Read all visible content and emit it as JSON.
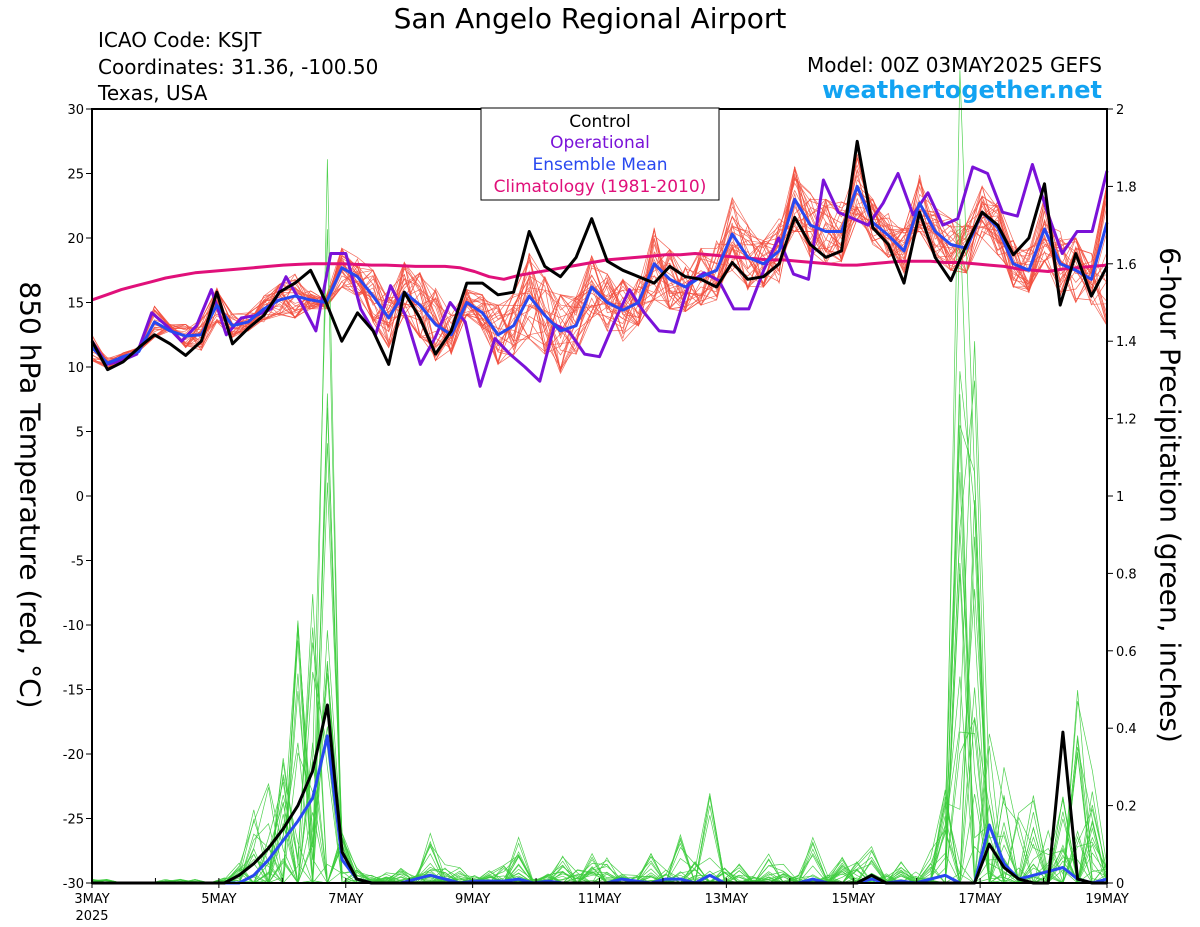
{
  "header": {
    "title": "San Angelo Regional Airport",
    "icao": "ICAO Code: KSJT",
    "coordinates": "Coordinates: 31.36, -100.50",
    "region": "Texas, USA",
    "model": "Model: 00Z 03MAY2025 GEFS",
    "site": "weathertogether.net"
  },
  "colors": {
    "control": "#000000",
    "operational": "#7a12d8",
    "ensemble_mean": "#2848f0",
    "climatology": "#e0107a",
    "members_temp": "#f25040",
    "members_precip": "#3ccc3c",
    "site_link": "#12a3f2"
  },
  "chart_data": {
    "type": "line",
    "title": "San Angelo Regional Airport",
    "ylabel": "850 hPa Temperature (red, °C)",
    "y2label": "6-hour Precipitation (green, inches)",
    "ylim": [
      -30,
      30
    ],
    "y2lim": [
      0,
      2
    ],
    "xlim": [
      "2025-05-03 00Z",
      "2025-05-19 00Z"
    ],
    "x_step": "6 hours",
    "yticks": [
      "30",
      "25",
      "20",
      "15",
      "10",
      "5",
      "0",
      "-5",
      "-10",
      "-15",
      "-20",
      "-25",
      "-30"
    ],
    "y2ticks": [
      "2",
      "1.8",
      "1.6",
      "1.4",
      "1.2",
      "1",
      "0.8",
      "0.6",
      "0.4",
      "0.2",
      "0"
    ],
    "xticks": [
      "3MAY",
      "5MAY",
      "7MAY",
      "9MAY",
      "11MAY",
      "13MAY",
      "15MAY",
      "17MAY",
      "19MAY"
    ],
    "xtick_year": "2025",
    "legend": {
      "placement": "top-center",
      "entries": [
        "Control",
        "Operational",
        "Ensemble Mean",
        "Climatology (1981-2010)"
      ]
    },
    "series": [
      {
        "name": "Control",
        "axis": "temperature",
        "values": [
          12,
          9.8,
          10.4,
          11.5,
          12.5,
          11.8,
          10.9,
          12,
          15.8,
          11.8,
          13,
          14,
          15.8,
          16.5,
          17.5,
          15,
          12,
          14.2,
          12.8,
          10.2,
          15.8,
          13.8,
          11,
          12.8,
          16.5,
          16.5,
          15.6,
          15.8,
          20.5,
          17.8,
          17,
          18.5,
          21.5,
          18.2,
          17.5,
          17,
          16.5,
          17.8,
          17,
          16.8,
          16.2,
          18.1,
          16.8,
          17,
          18,
          21.6,
          19.5,
          18.5,
          19,
          27.5,
          20.8,
          19.5,
          16.5,
          22,
          18.5,
          16.7,
          19.5,
          22,
          21,
          18.7,
          20,
          24.2,
          14.8,
          18.8,
          15.5,
          17.8
        ]
      },
      {
        "name": "Operational",
        "axis": "temperature",
        "values": [
          12,
          10.2,
          10.5,
          11,
          14.2,
          13.2,
          12,
          13.2,
          16,
          12.5,
          13.8,
          14,
          14.5,
          17,
          15,
          12.8,
          18.8,
          18.8,
          14.5,
          12.5,
          16.3,
          14,
          10.2,
          12.3,
          15,
          13.5,
          8.5,
          12.2,
          11,
          10,
          8.9,
          13.3,
          12.7,
          11,
          10.8,
          13.5,
          16,
          14.2,
          12.8,
          12.7,
          16.5,
          17.3,
          16.7,
          14.5,
          14.5,
          17.5,
          20,
          17.2,
          16.8,
          24.5,
          22,
          21.5,
          21,
          22.7,
          25,
          21.8,
          23.5,
          21,
          21.5,
          25.5,
          25,
          22,
          21.7,
          25.7,
          22,
          18.8,
          20.5,
          20.5,
          25.2
        ]
      },
      {
        "name": "Ensemble Mean",
        "axis": "temperature",
        "values": [
          11.5,
          10.3,
          10.8,
          11.2,
          13.5,
          12.8,
          12.4,
          12.5,
          14.8,
          13.2,
          13.5,
          14.5,
          15.2,
          15.5,
          15.2,
          15,
          17.7,
          17,
          15.5,
          13.8,
          15.8,
          14.8,
          13.3,
          12.5,
          15,
          14.2,
          12.5,
          13.2,
          15.5,
          14,
          12.8,
          13.2,
          16.2,
          15,
          14.4,
          15,
          18,
          16.8,
          16.2,
          17,
          17.5,
          20.3,
          18.5,
          18,
          19,
          23,
          21,
          20.5,
          20.5,
          24,
          21.2,
          20.2,
          19,
          22.7,
          20.5,
          19.5,
          19.2,
          22,
          20.8,
          18,
          17.5,
          20.7,
          18,
          17.5,
          16.8,
          21.2
        ]
      },
      {
        "name": "Climatology (1981-2010)",
        "axis": "temperature",
        "values": [
          15.2,
          15.6,
          16,
          16.3,
          16.6,
          16.9,
          17.1,
          17.3,
          17.4,
          17.5,
          17.6,
          17.7,
          17.8,
          17.9,
          17.95,
          18,
          18,
          18,
          17.95,
          17.9,
          17.9,
          17.85,
          17.8,
          17.8,
          17.8,
          17.7,
          17.4,
          17,
          16.8,
          17.1,
          17.3,
          17.5,
          17.7,
          17.9,
          18.1,
          18.3,
          18.4,
          18.5,
          18.6,
          18.7,
          18.7,
          18.8,
          18.7,
          18.6,
          18.5,
          18.4,
          18.3,
          18.3,
          18.2,
          18.1,
          18,
          17.9,
          17.9,
          18,
          18.1,
          18.2,
          18.2,
          18.2,
          18.1,
          18.1,
          18,
          17.9,
          17.8,
          17.6,
          17.5,
          17.4,
          17.6,
          17.7,
          17.8,
          17.9
        ]
      },
      {
        "name": "Control",
        "axis": "precipitation",
        "values": [
          0,
          0,
          0,
          0,
          0,
          0,
          0,
          0,
          0,
          0,
          0.02,
          0.05,
          0.09,
          0.14,
          0.2,
          0.29,
          0.46,
          0.08,
          0.01,
          0,
          0,
          0,
          0,
          0,
          0,
          0,
          0,
          0,
          0,
          0,
          0,
          0,
          0,
          0,
          0,
          0,
          0,
          0,
          0,
          0,
          0,
          0,
          0,
          0,
          0,
          0,
          0,
          0,
          0,
          0,
          0,
          0,
          0,
          0.02,
          0,
          0,
          0,
          0,
          0,
          0,
          0,
          0.1,
          0.04,
          0.01,
          0,
          0,
          0.39,
          0.01,
          0,
          0
        ]
      },
      {
        "name": "Ensemble Mean",
        "axis": "precipitation",
        "values": [
          0,
          0,
          0,
          0,
          0,
          0,
          0,
          0,
          0,
          0,
          0,
          0.02,
          0.06,
          0.11,
          0.16,
          0.22,
          0.38,
          0.06,
          0.01,
          0,
          0,
          0,
          0.01,
          0.02,
          0.01,
          0,
          0.005,
          0.005,
          0.005,
          0.01,
          0,
          0.005,
          0,
          0,
          0,
          0,
          0.01,
          0.005,
          0,
          0.01,
          0.01,
          0,
          0.02,
          0,
          0,
          0,
          0,
          0,
          0,
          0.01,
          0,
          0,
          0,
          0.01,
          0,
          0.005,
          0,
          0.01,
          0.02,
          0,
          0,
          0.15,
          0.05,
          0.01,
          0.02,
          0.03,
          0.04,
          0.01,
          0,
          0.01
        ]
      }
    ],
    "member_count": 30,
    "member_temperature_spread": [
      [
        10.5,
        9.9,
        10.5,
        11.2,
        12.3,
        12.8,
        11.5,
        11.3,
        13.5,
        12.3,
        12.8,
        13.5,
        14,
        13.8,
        14.5,
        14.5,
        16.2,
        15.5,
        13.5,
        11.5,
        13.5,
        12.3,
        10.5,
        11,
        14,
        12.8,
        10.2,
        10.7,
        12.2,
        11,
        9.5,
        11,
        13.8,
        12.8,
        12,
        13.2,
        15.2,
        14.5,
        14.3,
        14.8,
        15.2,
        17.5,
        16,
        16.2,
        16.5,
        20.5,
        18.5,
        18,
        18.2,
        21.5,
        19.5,
        18.5,
        17.3,
        20.5,
        18.5,
        17.5,
        17.3,
        20,
        18.7,
        16.2,
        15.8,
        18.2,
        15.5,
        15,
        14.8,
        13.2
      ],
      [
        12.5,
        10.7,
        11.1,
        11.5,
        14.7,
        13.3,
        13.3,
        13.7,
        16.1,
        14.1,
        14.2,
        15.5,
        16.4,
        17.2,
        15.9,
        15.5,
        19.2,
        18.5,
        17.5,
        16.1,
        18.1,
        17.3,
        16.1,
        14,
        16,
        15.6,
        14.8,
        15.7,
        18.8,
        17,
        15.6,
        15.4,
        18.6,
        17.2,
        16.8,
        16.8,
        20.8,
        19.1,
        18.1,
        19.2,
        19.8,
        23.1,
        21,
        19.8,
        21.5,
        25.5,
        23.5,
        23,
        22.8,
        26.5,
        23,
        21.9,
        20.7,
        24.9,
        22.5,
        21.5,
        21.1,
        24,
        22.9,
        19.8,
        19.2,
        23.2,
        20.5,
        20,
        18.8,
        24.2
      ]
    ],
    "member_precip_peak": [
      0.01,
      0.01,
      0,
      0,
      0,
      0.01,
      0.01,
      0.01,
      0,
      0.02,
      0.06,
      0.22,
      0.26,
      0.34,
      0.7,
      0.79,
      1.87,
      0.15,
      0.04,
      0.02,
      0.03,
      0.04,
      0.02,
      0.13,
      0.05,
      0.04,
      0.02,
      0.04,
      0.05,
      0.12,
      0.01,
      0.03,
      0.07,
      0.04,
      0.08,
      0.1,
      0.03,
      0.02,
      0.08,
      0.05,
      0.13,
      0.07,
      0.28,
      0.04,
      0.05,
      0.03,
      0.08,
      0.05,
      0.02,
      0.12,
      0.02,
      0.07,
      0.06,
      0.11,
      0.03,
      0.06,
      0.03,
      0.09,
      0.27,
      2.1,
      1.4,
      0.4,
      0.33,
      0.2,
      0.25,
      0.15,
      0.25,
      0.5,
      0.3,
      0.06
    ]
  }
}
